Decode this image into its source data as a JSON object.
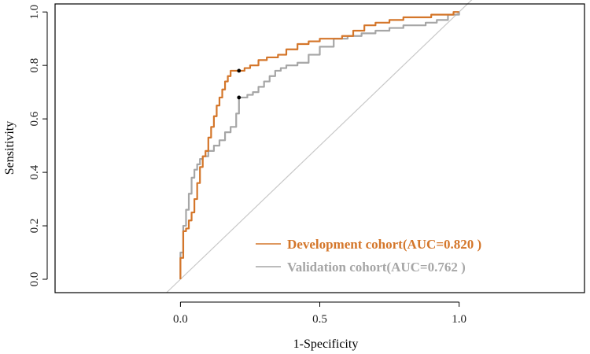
{
  "chart_data": {
    "type": "line",
    "title": "",
    "xlabel": "1-Specificity",
    "ylabel": "Sensitivity",
    "xlim": [
      -0.45,
      1.45
    ],
    "ylim": [
      -0.05,
      1.03
    ],
    "x_ticks": [
      0.0,
      0.5,
      1.0
    ],
    "x_tick_labels": [
      "0.0",
      "0.5",
      "1.0"
    ],
    "y_ticks": [
      0.0,
      0.2,
      0.4,
      0.6,
      0.8,
      1.0
    ],
    "y_tick_labels": [
      "0.0",
      "0.2",
      "0.4",
      "0.6",
      "0.8",
      "1.0"
    ],
    "grid": false,
    "legend_position": "bottom-right",
    "reference_line": {
      "x": [
        -0.05,
        1.05
      ],
      "y": [
        -0.05,
        1.05
      ],
      "color": "#c8c8c8"
    },
    "series": [
      {
        "name": "Development cohort",
        "legend": "Development cohort(AUC=0.820 )",
        "auc": 0.82,
        "color": "#d4762a",
        "cutoff": {
          "x": 0.21,
          "y": 0.78
        },
        "x": [
          0.0,
          0.0,
          0.01,
          0.01,
          0.02,
          0.03,
          0.04,
          0.05,
          0.06,
          0.07,
          0.08,
          0.09,
          0.1,
          0.11,
          0.12,
          0.13,
          0.14,
          0.15,
          0.16,
          0.17,
          0.18,
          0.19,
          0.2,
          0.21,
          0.23,
          0.25,
          0.28,
          0.31,
          0.35,
          0.38,
          0.42,
          0.46,
          0.5,
          0.54,
          0.58,
          0.62,
          0.66,
          0.7,
          0.75,
          0.8,
          0.85,
          0.9,
          0.95,
          0.98,
          1.0
        ],
        "y": [
          0.0,
          0.08,
          0.17,
          0.18,
          0.19,
          0.22,
          0.25,
          0.3,
          0.36,
          0.42,
          0.46,
          0.48,
          0.53,
          0.57,
          0.61,
          0.65,
          0.68,
          0.71,
          0.74,
          0.76,
          0.78,
          0.78,
          0.78,
          0.78,
          0.79,
          0.8,
          0.82,
          0.83,
          0.84,
          0.86,
          0.88,
          0.89,
          0.9,
          0.9,
          0.91,
          0.93,
          0.95,
          0.96,
          0.97,
          0.98,
          0.98,
          0.99,
          0.99,
          1.0,
          1.0
        ]
      },
      {
        "name": "Validation cohort",
        "legend": "Validation cohort(AUC=0.762 )",
        "auc": 0.762,
        "color": "#a6a6a6",
        "cutoff": {
          "x": 0.21,
          "y": 0.68
        },
        "x": [
          0.0,
          0.0,
          0.01,
          0.02,
          0.03,
          0.04,
          0.05,
          0.06,
          0.07,
          0.08,
          0.1,
          0.12,
          0.14,
          0.16,
          0.18,
          0.2,
          0.21,
          0.22,
          0.24,
          0.26,
          0.28,
          0.3,
          0.32,
          0.34,
          0.36,
          0.38,
          0.42,
          0.46,
          0.5,
          0.55,
          0.6,
          0.65,
          0.7,
          0.75,
          0.8,
          0.85,
          0.88,
          0.92,
          0.96,
          1.0
        ],
        "y": [
          0.0,
          0.1,
          0.2,
          0.26,
          0.32,
          0.38,
          0.41,
          0.43,
          0.45,
          0.46,
          0.48,
          0.5,
          0.52,
          0.55,
          0.57,
          0.62,
          0.68,
          0.68,
          0.69,
          0.7,
          0.72,
          0.74,
          0.76,
          0.78,
          0.79,
          0.8,
          0.81,
          0.84,
          0.87,
          0.9,
          0.91,
          0.92,
          0.93,
          0.94,
          0.95,
          0.95,
          0.96,
          0.97,
          0.99,
          1.0
        ]
      }
    ]
  }
}
